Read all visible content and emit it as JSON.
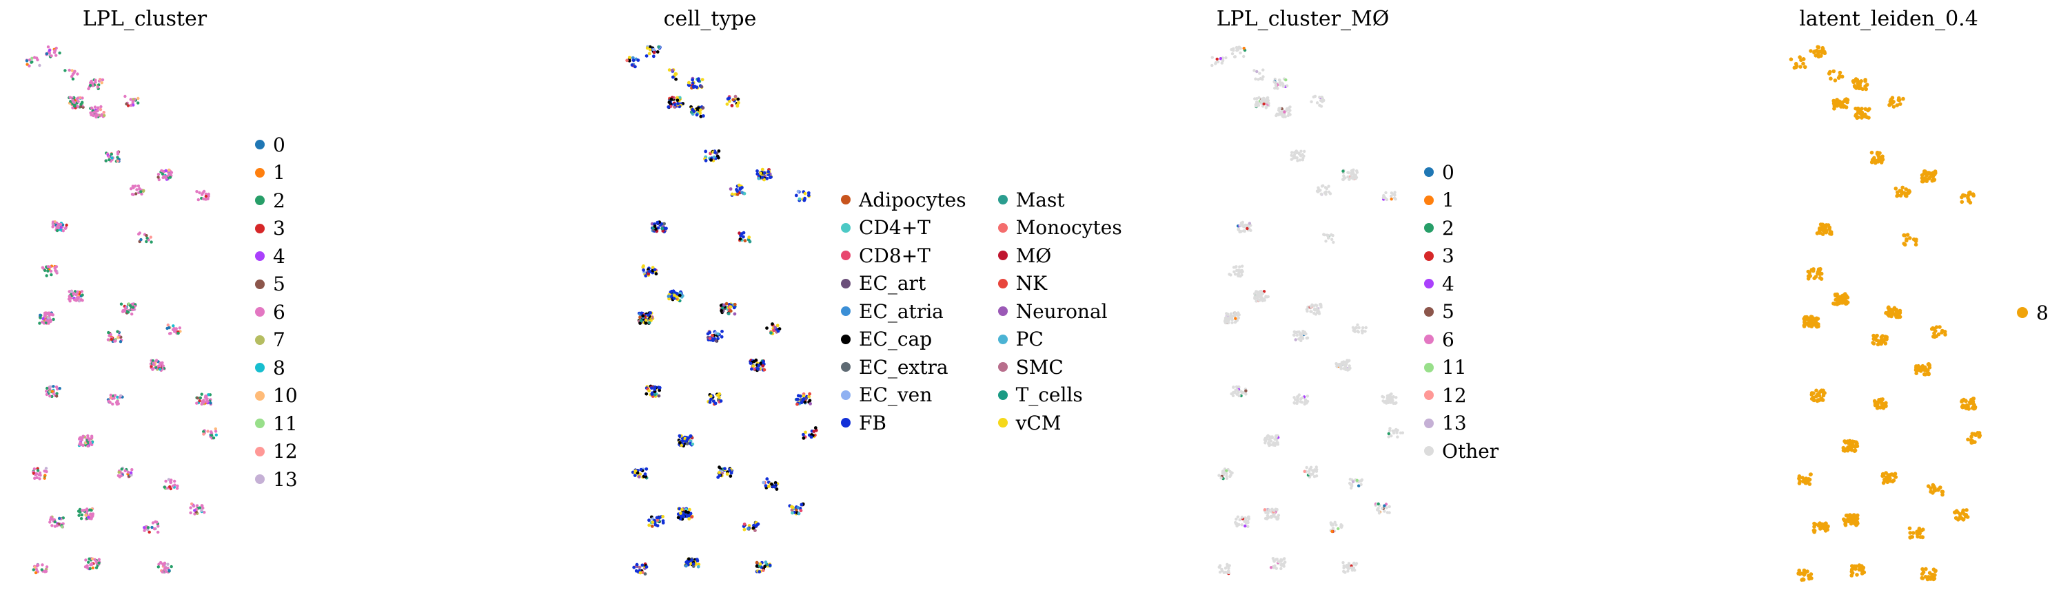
{
  "chart_data": [
    {
      "type": "scatter",
      "title": "LPL_cluster",
      "xlabel": "",
      "ylabel": "",
      "grid": false,
      "legend_position": "right",
      "legend": [
        {
          "label": "0",
          "color": "#1f77b4"
        },
        {
          "label": "1",
          "color": "#ff7f0e"
        },
        {
          "label": "2",
          "color": "#279e68"
        },
        {
          "label": "3",
          "color": "#d62728"
        },
        {
          "label": "4",
          "color": "#aa40fc"
        },
        {
          "label": "5",
          "color": "#8c564b"
        },
        {
          "label": "6",
          "color": "#e377c2"
        },
        {
          "label": "7",
          "color": "#b5bd61"
        },
        {
          "label": "8",
          "color": "#17becf"
        },
        {
          "label": "10",
          "color": "#ffbb78"
        },
        {
          "label": "11",
          "color": "#98df8a"
        },
        {
          "label": "12",
          "color": "#ff9896"
        },
        {
          "label": "13",
          "color": "#c5b0d5"
        }
      ]
    },
    {
      "type": "scatter",
      "title": "cell_type",
      "xlabel": "",
      "ylabel": "",
      "grid": false,
      "legend_position": "right",
      "legend": [
        {
          "label": "Adipocytes",
          "color": "#c8541d"
        },
        {
          "label": "CD4+T",
          "color": "#4cc9c5"
        },
        {
          "label": "CD8+T",
          "color": "#e8476e"
        },
        {
          "label": "EC_art",
          "color": "#6b4f7a"
        },
        {
          "label": "EC_atria",
          "color": "#3b8fd6"
        },
        {
          "label": "EC_cap",
          "color": "#000000"
        },
        {
          "label": "EC_extra",
          "color": "#5e6a73"
        },
        {
          "label": "EC_ven",
          "color": "#8fb1f2"
        },
        {
          "label": "FB",
          "color": "#1230d8"
        },
        {
          "label": "Mast",
          "color": "#2a9d8f"
        },
        {
          "label": "Monocytes",
          "color": "#f46d6d"
        },
        {
          "label": "MØ",
          "color": "#c0152f"
        },
        {
          "label": "NK",
          "color": "#e8453c"
        },
        {
          "label": "Neuronal",
          "color": "#9b59b6"
        },
        {
          "label": "PC",
          "color": "#4bb3d4"
        },
        {
          "label": "SMC",
          "color": "#b86e8c"
        },
        {
          "label": "T_cells",
          "color": "#1a9b84"
        },
        {
          "label": "vCM",
          "color": "#f5d81a"
        }
      ]
    },
    {
      "type": "scatter",
      "title": "LPL_cluster_MØ",
      "xlabel": "",
      "ylabel": "",
      "grid": false,
      "legend_position": "right",
      "legend": [
        {
          "label": "0",
          "color": "#1f77b4"
        },
        {
          "label": "1",
          "color": "#ff7f0e"
        },
        {
          "label": "2",
          "color": "#279e68"
        },
        {
          "label": "3",
          "color": "#d62728"
        },
        {
          "label": "4",
          "color": "#aa40fc"
        },
        {
          "label": "5",
          "color": "#8c564b"
        },
        {
          "label": "6",
          "color": "#e377c2"
        },
        {
          "label": "11",
          "color": "#98df8a"
        },
        {
          "label": "12",
          "color": "#ff9896"
        },
        {
          "label": "13",
          "color": "#c5b0d5"
        },
        {
          "label": "Other",
          "color": "#dcdcdc"
        }
      ]
    },
    {
      "type": "scatter",
      "title": "latent_leiden_0.4",
      "xlabel": "",
      "ylabel": "",
      "grid": false,
      "legend_position": "right",
      "legend": [
        {
          "label": "8",
          "color": "#f0a30a"
        }
      ]
    }
  ]
}
